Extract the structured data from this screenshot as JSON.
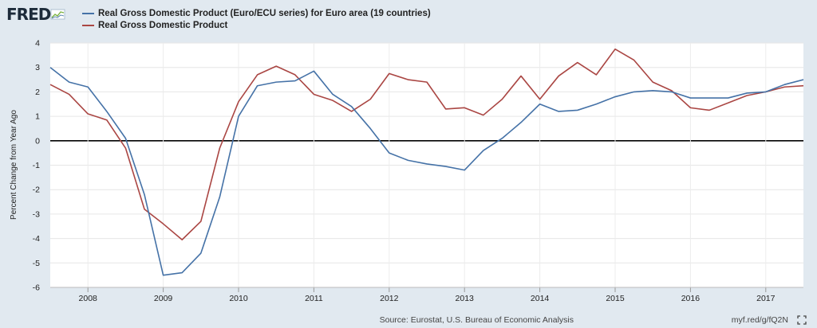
{
  "header": {
    "logo_text": "FRED"
  },
  "legend": [
    {
      "label": "Real Gross Domestic Product (Euro/ECU series) for Euro area (19 countries)",
      "color": "#4572a7"
    },
    {
      "label": "Real Gross Domestic Product",
      "color": "#aa4643"
    }
  ],
  "footer": {
    "source": "Source: Eurostat, U.S. Bureau of Economic Analysis",
    "link": "myf.red/g/fQ2N"
  },
  "chart_data": {
    "type": "line",
    "title": "",
    "xlabel": "",
    "ylabel": "Percent Change from Year Ago",
    "xlim": [
      2007.5,
      2017.5
    ],
    "ylim": [
      -6,
      4
    ],
    "yticks": [
      4,
      3,
      2,
      1,
      0,
      -1,
      -2,
      -3,
      -4,
      -5,
      -6
    ],
    "xticks": [
      2008,
      2009,
      2010,
      2011,
      2012,
      2013,
      2014,
      2015,
      2016,
      2017
    ],
    "grid": true,
    "legend_position": "top-left",
    "series": [
      {
        "name": "Real Gross Domestic Product (Euro/ECU series) for Euro area (19 countries)",
        "color": "#4572a7",
        "x": [
          2007.5,
          2007.75,
          2008.0,
          2008.25,
          2008.5,
          2008.75,
          2009.0,
          2009.25,
          2009.5,
          2009.75,
          2010.0,
          2010.25,
          2010.5,
          2010.75,
          2011.0,
          2011.25,
          2011.5,
          2011.75,
          2012.0,
          2012.25,
          2012.5,
          2012.75,
          2013.0,
          2013.25,
          2013.5,
          2013.75,
          2014.0,
          2014.25,
          2014.5,
          2014.75,
          2015.0,
          2015.25,
          2015.5,
          2015.75,
          2016.0,
          2016.25,
          2016.5,
          2016.75,
          2017.0,
          2017.25,
          2017.5
        ],
        "values": [
          3.0,
          2.4,
          2.2,
          1.2,
          0.1,
          -2.2,
          -5.5,
          -5.4,
          -4.6,
          -2.3,
          1.0,
          2.25,
          2.4,
          2.45,
          2.85,
          1.9,
          1.4,
          0.5,
          -0.5,
          -0.8,
          -0.95,
          -1.05,
          -1.2,
          -0.4,
          0.1,
          0.75,
          1.5,
          1.2,
          1.25,
          1.5,
          1.8,
          2.0,
          2.05,
          2.0,
          1.75,
          1.75,
          1.75,
          1.95,
          2.0,
          2.3,
          2.5
        ]
      },
      {
        "name": "Real Gross Domestic Product",
        "color": "#aa4643",
        "x": [
          2007.5,
          2007.75,
          2008.0,
          2008.25,
          2008.5,
          2008.75,
          2009.0,
          2009.25,
          2009.5,
          2009.75,
          2010.0,
          2010.25,
          2010.5,
          2010.75,
          2011.0,
          2011.25,
          2011.5,
          2011.75,
          2012.0,
          2012.25,
          2012.5,
          2012.75,
          2013.0,
          2013.25,
          2013.5,
          2013.75,
          2014.0,
          2014.25,
          2014.5,
          2014.75,
          2015.0,
          2015.25,
          2015.5,
          2015.75,
          2016.0,
          2016.25,
          2016.5,
          2016.75,
          2017.0,
          2017.25,
          2017.5
        ],
        "values": [
          2.3,
          1.9,
          1.1,
          0.85,
          -0.3,
          -2.8,
          -3.4,
          -4.05,
          -3.3,
          -0.3,
          1.6,
          2.7,
          3.05,
          2.7,
          1.9,
          1.65,
          1.2,
          1.7,
          2.75,
          2.5,
          2.4,
          1.3,
          1.35,
          1.05,
          1.7,
          2.65,
          1.7,
          2.65,
          3.2,
          2.7,
          3.75,
          3.3,
          2.4,
          2.05,
          1.35,
          1.25,
          1.55,
          1.85,
          2.0,
          2.2,
          2.25
        ]
      }
    ]
  }
}
